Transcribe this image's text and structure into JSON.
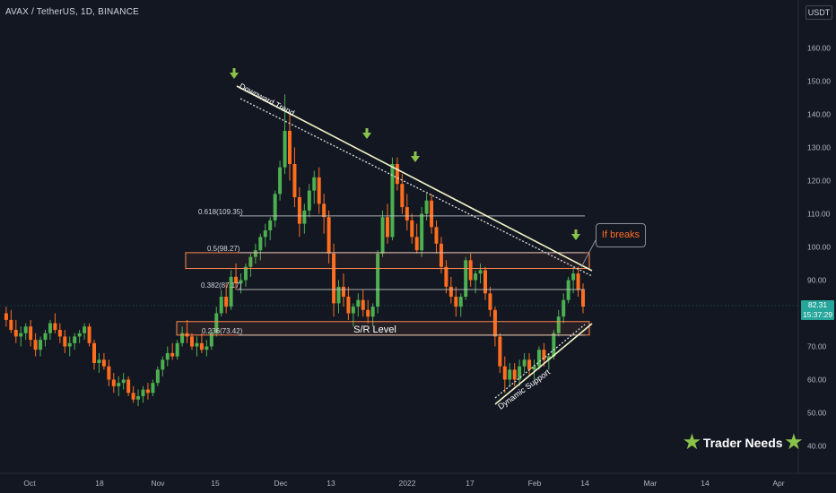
{
  "header": {
    "symbol": "AVAX / TetherUS, 1D, BINANCE",
    "currency": "USDT"
  },
  "current_price": {
    "value": "82.31",
    "countdown": "15:37:29"
  },
  "colors": {
    "background": "#131722",
    "up": "#4caf50",
    "down": "#ff6d1f",
    "trendline": "#f5f5c8",
    "sr_zone": "#ff8a50",
    "arrow": "#8bc34a",
    "price_box": "#26a69a"
  },
  "chart_data": {
    "type": "candlestick",
    "title": "AVAX / TetherUS, 1D, BINANCE",
    "ylabel": "USDT",
    "y_ticks": [
      40,
      50,
      60,
      70,
      80,
      90,
      100,
      110,
      120,
      130,
      140,
      150,
      160
    ],
    "ylim": [
      35,
      168
    ],
    "x_ticks": [
      "Oct",
      "18",
      "Nov",
      "15",
      "Dec",
      "13",
      "2022",
      "17",
      "Feb",
      "14",
      "Mar",
      "14",
      "Apr"
    ],
    "grid": false,
    "candles_ohlc": [
      [
        80,
        82,
        76,
        78
      ],
      [
        78,
        81,
        74,
        75
      ],
      [
        75,
        78,
        71,
        73
      ],
      [
        73,
        76,
        70,
        74
      ],
      [
        74,
        77,
        72,
        76
      ],
      [
        76,
        78,
        70,
        72
      ],
      [
        72,
        74,
        67,
        69
      ],
      [
        69,
        73,
        67,
        72
      ],
      [
        72,
        75,
        70,
        74
      ],
      [
        74,
        78,
        72,
        77
      ],
      [
        77,
        80,
        74,
        75
      ],
      [
        75,
        77,
        71,
        73
      ],
      [
        73,
        75,
        68,
        70
      ],
      [
        70,
        73,
        67,
        71
      ],
      [
        71,
        74,
        69,
        73
      ],
      [
        73,
        75,
        71,
        74
      ],
      [
        74,
        77,
        72,
        76
      ],
      [
        76,
        77,
        70,
        71
      ],
      [
        71,
        72,
        63,
        65
      ],
      [
        65,
        68,
        62,
        66
      ],
      [
        66,
        68,
        63,
        64
      ],
      [
        64,
        66,
        58,
        60
      ],
      [
        60,
        62,
        56,
        58
      ],
      [
        58,
        61,
        55,
        59
      ],
      [
        59,
        62,
        57,
        60
      ],
      [
        60,
        61,
        55,
        56
      ],
      [
        56,
        58,
        53,
        54
      ],
      [
        54,
        57,
        52,
        55
      ],
      [
        55,
        58,
        53,
        57
      ],
      [
        57,
        59,
        54,
        56
      ],
      [
        56,
        60,
        55,
        59
      ],
      [
        59,
        64,
        58,
        63
      ],
      [
        63,
        67,
        61,
        66
      ],
      [
        66,
        70,
        64,
        68
      ],
      [
        68,
        71,
        66,
        67
      ],
      [
        67,
        72,
        66,
        71
      ],
      [
        71,
        76,
        70,
        74
      ],
      [
        74,
        78,
        71,
        73
      ],
      [
        73,
        74,
        69,
        70
      ],
      [
        70,
        73,
        67,
        71
      ],
      [
        71,
        74,
        68,
        69
      ],
      [
        69,
        72,
        67,
        70
      ],
      [
        70,
        75,
        69,
        74
      ],
      [
        74,
        82,
        73,
        80
      ],
      [
        80,
        87,
        79,
        85
      ],
      [
        85,
        89,
        80,
        82
      ],
      [
        82,
        93,
        81,
        91
      ],
      [
        91,
        95,
        87,
        89
      ],
      [
        89,
        92,
        86,
        90
      ],
      [
        90,
        95,
        88,
        94
      ],
      [
        94,
        98,
        91,
        97
      ],
      [
        97,
        101,
        95,
        99
      ],
      [
        99,
        104,
        96,
        103
      ],
      [
        103,
        107,
        100,
        105
      ],
      [
        105,
        109,
        102,
        108
      ],
      [
        108,
        117,
        106,
        116
      ],
      [
        116,
        126,
        114,
        124
      ],
      [
        124,
        146,
        122,
        135
      ],
      [
        135,
        140,
        120,
        125
      ],
      [
        125,
        130,
        112,
        115
      ],
      [
        115,
        118,
        103,
        107
      ],
      [
        107,
        113,
        104,
        111
      ],
      [
        111,
        119,
        109,
        117
      ],
      [
        117,
        123,
        113,
        121
      ],
      [
        121,
        124,
        110,
        113
      ],
      [
        113,
        116,
        104,
        109
      ],
      [
        109,
        111,
        95,
        98
      ],
      [
        98,
        101,
        79,
        83
      ],
      [
        83,
        90,
        80,
        88
      ],
      [
        88,
        92,
        82,
        85
      ],
      [
        85,
        88,
        78,
        80
      ],
      [
        80,
        83,
        76,
        82
      ],
      [
        82,
        86,
        79,
        84
      ],
      [
        84,
        87,
        79,
        81
      ],
      [
        81,
        84,
        77,
        79
      ],
      [
        79,
        83,
        76,
        82
      ],
      [
        82,
        99,
        80,
        98
      ],
      [
        98,
        111,
        97,
        109
      ],
      [
        109,
        113,
        101,
        103
      ],
      [
        103,
        127,
        102,
        125
      ],
      [
        125,
        127,
        117,
        119
      ],
      [
        119,
        122,
        110,
        112
      ],
      [
        112,
        116,
        105,
        108
      ],
      [
        108,
        110,
        101,
        103
      ],
      [
        103,
        107,
        98,
        99
      ],
      [
        99,
        112,
        97,
        110
      ],
      [
        110,
        116,
        108,
        114
      ],
      [
        114,
        116,
        104,
        106
      ],
      [
        106,
        108,
        98,
        101
      ],
      [
        101,
        103,
        92,
        94
      ],
      [
        94,
        96,
        86,
        88
      ],
      [
        88,
        91,
        83,
        85
      ],
      [
        85,
        88,
        79,
        82
      ],
      [
        82,
        86,
        79,
        85
      ],
      [
        85,
        97,
        84,
        96
      ],
      [
        96,
        98,
        88,
        90
      ],
      [
        90,
        93,
        86,
        92
      ],
      [
        92,
        95,
        89,
        93
      ],
      [
        93,
        94,
        84,
        86
      ],
      [
        86,
        88,
        79,
        81
      ],
      [
        81,
        82,
        70,
        73
      ],
      [
        73,
        74,
        62,
        64
      ],
      [
        64,
        67,
        56,
        60
      ],
      [
        60,
        65,
        58,
        63
      ],
      [
        63,
        65,
        58,
        60
      ],
      [
        60,
        66,
        58,
        64
      ],
      [
        64,
        68,
        62,
        66
      ],
      [
        66,
        68,
        61,
        63
      ],
      [
        63,
        66,
        60,
        64
      ],
      [
        64,
        70,
        63,
        69
      ],
      [
        69,
        71,
        64,
        66
      ],
      [
        66,
        68,
        63,
        67
      ],
      [
        67,
        75,
        66,
        74
      ],
      [
        74,
        81,
        73,
        79
      ],
      [
        79,
        86,
        77,
        84
      ],
      [
        84,
        91,
        83,
        90
      ],
      [
        90,
        94,
        86,
        92
      ],
      [
        92,
        94,
        85,
        87
      ],
      [
        87,
        89,
        80,
        82
      ]
    ],
    "annotations": [
      {
        "type": "trendline",
        "label": "Downward Trend"
      },
      {
        "type": "trendline",
        "label": "Dynamic Support"
      },
      {
        "type": "fib_level",
        "label": "0.618(109.35)",
        "value": 109.35
      },
      {
        "type": "fib_level",
        "label": "0.5(98.27)",
        "value": 98.27
      },
      {
        "type": "fib_level",
        "label": "0.382(87.17)",
        "value": 87.17
      },
      {
        "type": "fib_level",
        "label": "0.236(73.42)",
        "value": 73.42
      },
      {
        "type": "zone",
        "label": "S/R Level",
        "low": 73.42,
        "high": 77.5
      },
      {
        "type": "zone",
        "label": "",
        "low": 93.5,
        "high": 98.27
      },
      {
        "type": "callout",
        "label": "If  breaks"
      }
    ]
  },
  "branding": {
    "label": "Trader Needs"
  }
}
